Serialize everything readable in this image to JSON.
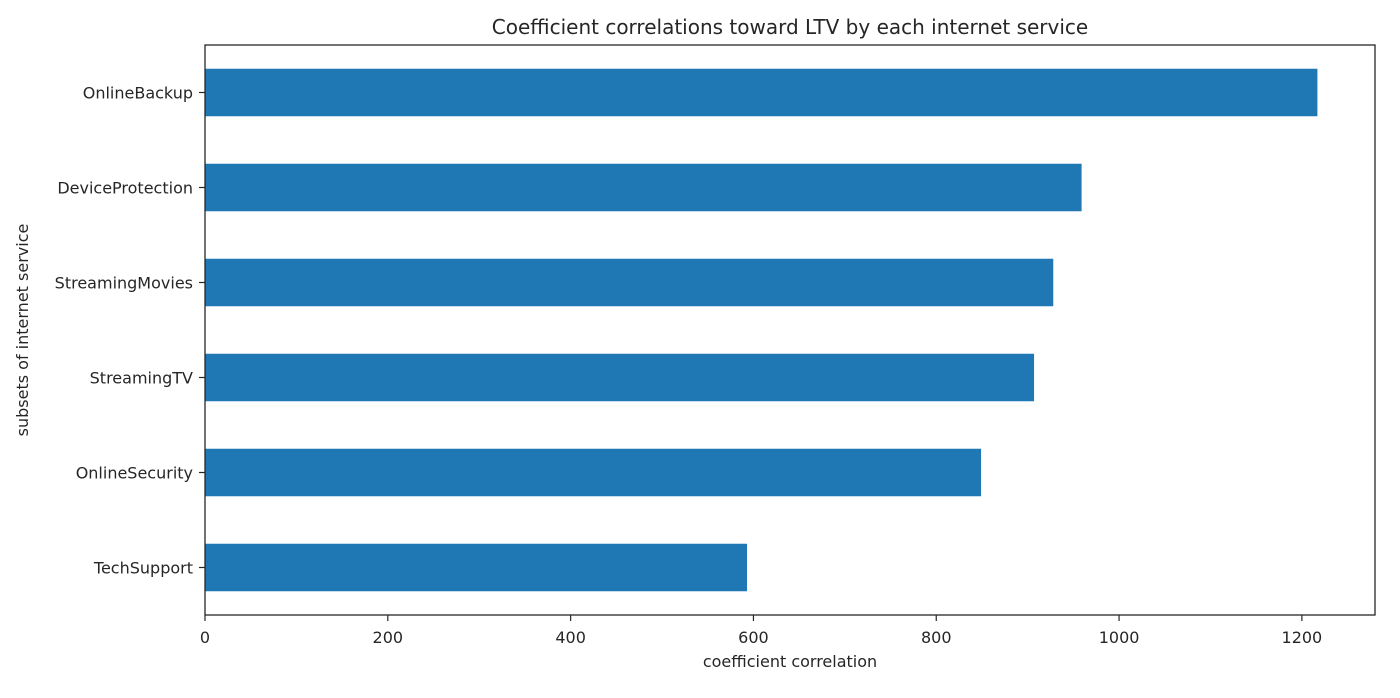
{
  "chart_data": {
    "type": "bar",
    "orientation": "horizontal",
    "title": "Coefficient correlations toward LTV by each internet service",
    "xlabel": "coefficient correlation",
    "ylabel": "subsets of internet service",
    "categories": [
      "OnlineBackup",
      "DeviceProtection",
      "StreamingMovies",
      "StreamingTV",
      "OnlineSecurity",
      "TechSupport"
    ],
    "values": [
      1217,
      959,
      928,
      907,
      849,
      593
    ],
    "xlim": [
      0,
      1280
    ],
    "xticks": [
      "0",
      "200",
      "400",
      "600",
      "800",
      "1000",
      "1200"
    ],
    "xtick_values": [
      0,
      200,
      400,
      600,
      800,
      1000,
      1200
    ],
    "bar_color": "#1f77b4",
    "grid": false,
    "legend": "none"
  }
}
